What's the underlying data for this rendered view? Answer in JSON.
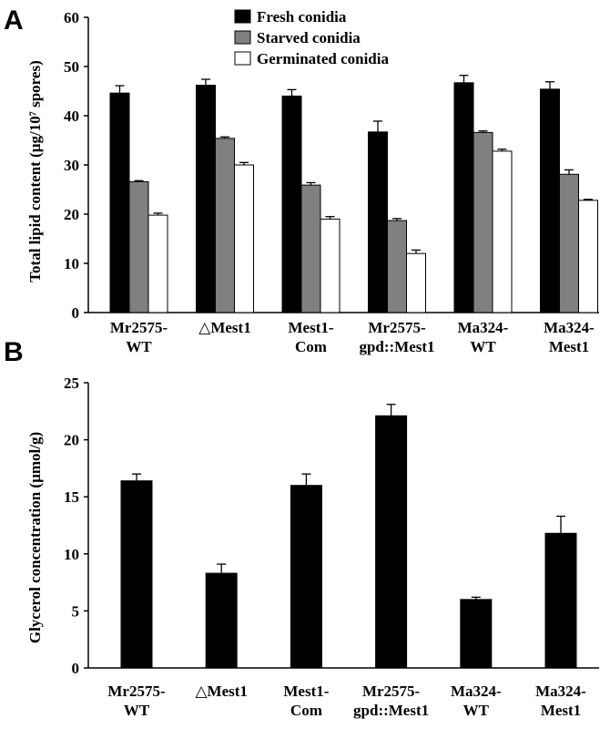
{
  "chart_data": [
    {
      "panel": "A",
      "type": "bar",
      "ylabel": "Total lipid content (µg/10⁷ spores)",
      "ylim": [
        0,
        60
      ],
      "yticks": [
        0,
        10,
        20,
        30,
        40,
        50,
        60
      ],
      "categories": [
        [
          "Mr2575-",
          "WT"
        ],
        [
          "△Mest1",
          ""
        ],
        [
          "Mest1-",
          "Com"
        ],
        [
          "Mr2575-",
          "gpd::Mest1"
        ],
        [
          "Ma324-",
          "WT"
        ],
        [
          "Ma324-",
          "Mest1"
        ]
      ],
      "legend_position": "top-center",
      "series": [
        {
          "name": "Fresh conidia",
          "color": "#000000",
          "values": [
            44.6,
            46.2,
            44.0,
            36.7,
            46.7,
            45.4
          ],
          "errors": [
            1.5,
            1.2,
            1.3,
            2.2,
            1.5,
            1.5
          ]
        },
        {
          "name": "Starved conidia",
          "color": "#808080",
          "values": [
            26.6,
            35.4,
            25.9,
            18.7,
            36.6,
            28.1
          ],
          "errors": [
            0.2,
            0.3,
            0.5,
            0.4,
            0.3,
            0.9
          ]
        },
        {
          "name": "Germinated conidia",
          "color": "#ffffff",
          "values": [
            19.8,
            30.0,
            19.0,
            12.0,
            32.8,
            22.8
          ],
          "errors": [
            0.4,
            0.5,
            0.5,
            0.7,
            0.4,
            0.2
          ]
        }
      ]
    },
    {
      "panel": "B",
      "type": "bar",
      "ylabel": "Glycerol concentration (µmol/g)",
      "ylim": [
        0,
        25
      ],
      "yticks": [
        0,
        5,
        10,
        15,
        20,
        25
      ],
      "categories": [
        [
          "Mr2575-",
          "WT"
        ],
        [
          "△Mest1",
          ""
        ],
        [
          "Mest1-",
          "Com"
        ],
        [
          "Mr2575-",
          "gpd::Mest1"
        ],
        [
          "Ma324-",
          "WT"
        ],
        [
          "Ma324-",
          "Mest1"
        ]
      ],
      "series": [
        {
          "color": "#000000",
          "values": [
            16.4,
            8.3,
            16.0,
            22.1,
            6.0,
            11.8
          ],
          "errors": [
            0.6,
            0.8,
            1.0,
            1.0,
            0.2,
            1.5
          ]
        }
      ]
    }
  ]
}
